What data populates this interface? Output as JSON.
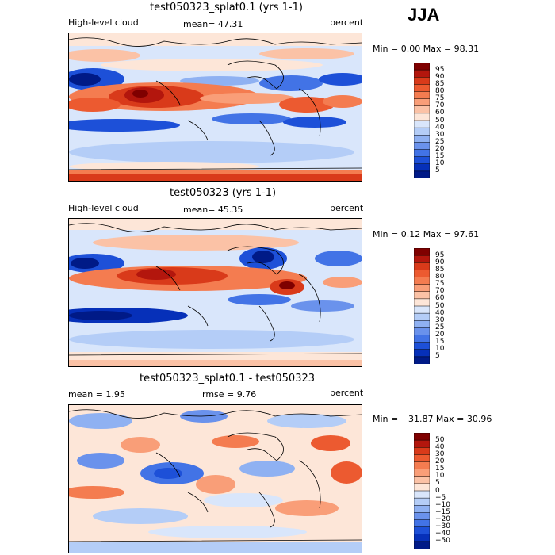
{
  "season": "JJA",
  "panels": [
    {
      "title": "test050323_splat0.1 (yrs 1-1)",
      "left_label": "High-level cloud",
      "center_label": "mean=   47.31",
      "right_label": "percent",
      "min_max": "Min =    0.00 Max =   98.31",
      "levels": [
        "95",
        "90",
        "85",
        "80",
        "75",
        "70",
        "60",
        "50",
        "40",
        "30",
        "25",
        "20",
        "15",
        "10",
        "5"
      ],
      "colors": [
        "#7f0000",
        "#b3160d",
        "#d93a1a",
        "#ec5a30",
        "#f47c50",
        "#f99e78",
        "#fbc2a6",
        "#fde6d8",
        "#d9e6fb",
        "#b4cdf7",
        "#8fb1f2",
        "#6a92ec",
        "#4273e6",
        "#1d50d8",
        "#0630b9",
        "#001a87"
      ]
    },
    {
      "title": "test050323 (yrs 1-1)",
      "left_label": "High-level cloud",
      "center_label": "mean=   45.35",
      "right_label": "percent",
      "min_max": "Min =    0.12 Max =   97.61",
      "levels": [
        "95",
        "90",
        "85",
        "80",
        "75",
        "70",
        "60",
        "50",
        "40",
        "30",
        "25",
        "20",
        "15",
        "10",
        "5"
      ],
      "colors": [
        "#7f0000",
        "#b3160d",
        "#d93a1a",
        "#ec5a30",
        "#f47c50",
        "#f99e78",
        "#fbc2a6",
        "#fde6d8",
        "#d9e6fb",
        "#b4cdf7",
        "#8fb1f2",
        "#6a92ec",
        "#4273e6",
        "#1d50d8",
        "#0630b9",
        "#001a87"
      ]
    },
    {
      "title": "test050323_splat0.1 - test050323",
      "left_label": "mean =    1.95",
      "center_label": "rmse =    9.76",
      "right_label": "percent",
      "min_max": "Min = −31.87 Max =   30.96",
      "levels": [
        "50",
        "40",
        "30",
        "20",
        "15",
        "10",
        "5",
        "0",
        "−5",
        "−10",
        "−15",
        "−20",
        "−30",
        "−40",
        "−50"
      ],
      "colors": [
        "#7f0000",
        "#b3160d",
        "#d93a1a",
        "#ec5a30",
        "#f47c50",
        "#f99e78",
        "#fbc2a6",
        "#fde6d8",
        "#d9e6fb",
        "#b4cdf7",
        "#8fb1f2",
        "#6a92ec",
        "#4273e6",
        "#1d50d8",
        "#0630b9",
        "#001a87"
      ]
    }
  ]
}
